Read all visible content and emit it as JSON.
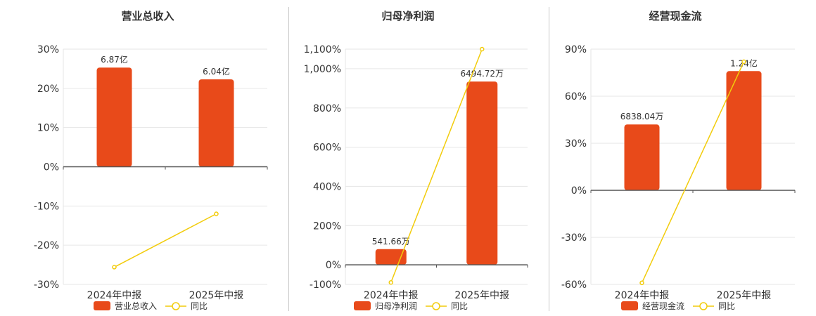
{
  "colors": {
    "bar": "#e84a1a",
    "line": "#f2cc0c",
    "grid": "#e6e6e6",
    "axis": "#555555",
    "divider": "#c8c8c8"
  },
  "chart_data": [
    {
      "type": "bar",
      "title": "营业总收入",
      "categories": [
        "2024年中报",
        "2025年中报"
      ],
      "bar_series": {
        "name": "营业总收入",
        "values": [
          25.3,
          22.3
        ],
        "labels": [
          "6.87亿",
          "6.04亿"
        ]
      },
      "line_series": {
        "name": "同比",
        "values": [
          -25.6,
          -12.0
        ]
      },
      "y_axis": {
        "min": -30,
        "max": 30,
        "ticks": [
          30,
          20,
          10,
          0,
          -10,
          -20,
          -30
        ],
        "tick_labels": [
          "30%",
          "20%",
          "10%",
          "0%",
          "-10%",
          "-20%",
          "-30%"
        ]
      },
      "grid": true,
      "legend": "bottom"
    },
    {
      "type": "bar",
      "title": "归母净利润",
      "categories": [
        "2024年中报",
        "2025年中报"
      ],
      "bar_series": {
        "name": "归母净利润",
        "values": [
          80,
          935
        ],
        "labels": [
          "541.66万",
          "6494.72万"
        ]
      },
      "line_series": {
        "name": "同比",
        "values": [
          -90,
          1100
        ]
      },
      "y_axis": {
        "min": -100,
        "max": 1100,
        "ticks": [
          1100,
          1000,
          800,
          600,
          400,
          200,
          0,
          -100
        ],
        "tick_labels": [
          "1,100%",
          "1,000%",
          "800%",
          "600%",
          "400%",
          "200%",
          "0%",
          "-100%"
        ]
      },
      "grid": true,
      "legend": "bottom"
    },
    {
      "type": "bar",
      "title": "经营现金流",
      "categories": [
        "2024年中报",
        "2025年中报"
      ],
      "bar_series": {
        "name": "经营现金流",
        "values": [
          42,
          76
        ],
        "labels": [
          "6838.04万",
          "1.24亿"
        ]
      },
      "line_series": {
        "name": "同比",
        "values": [
          -59,
          82
        ]
      },
      "y_axis": {
        "min": -60,
        "max": 90,
        "ticks": [
          90,
          60,
          30,
          0,
          -30,
          -60
        ],
        "tick_labels": [
          "90%",
          "60%",
          "30%",
          "0%",
          "-30%",
          "-60%"
        ]
      },
      "grid": true,
      "legend": "bottom"
    }
  ]
}
